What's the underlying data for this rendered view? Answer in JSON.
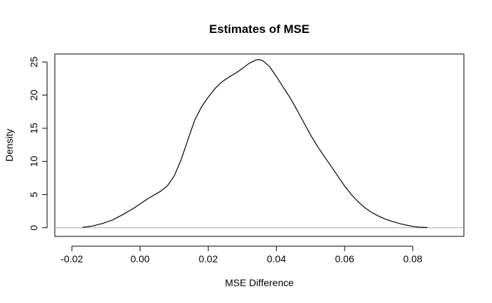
{
  "chart_data": {
    "type": "line",
    "title": "Estimates of MSE",
    "xlabel": "MSE Difference",
    "ylabel": "Density",
    "xlim": [
      -0.025,
      0.095
    ],
    "ylim": [
      -1.3,
      26.2
    ],
    "xticks": [
      -0.02,
      0.0,
      0.02,
      0.04,
      0.06,
      0.08
    ],
    "xtick_labels": [
      "-0.02",
      "0.00",
      "0.02",
      "0.04",
      "0.06",
      "0.08"
    ],
    "yticks": [
      0,
      5,
      10,
      15,
      20,
      25
    ],
    "ytick_labels": [
      "0",
      "5",
      "10",
      "15",
      "20",
      "25"
    ],
    "grid": false,
    "baseline": 0,
    "series": [
      {
        "x": [
          -0.0169,
          -0.014,
          -0.011,
          -0.008,
          -0.005,
          -0.002,
          0.0,
          0.002,
          0.004,
          0.006,
          0.008,
          0.01,
          0.012,
          0.014,
          0.016,
          0.018,
          0.02,
          0.022,
          0.024,
          0.026,
          0.028,
          0.03,
          0.032,
          0.034,
          0.035,
          0.036,
          0.038,
          0.04,
          0.042,
          0.044,
          0.046,
          0.048,
          0.05,
          0.052,
          0.054,
          0.056,
          0.058,
          0.06,
          0.062,
          0.064,
          0.066,
          0.068,
          0.07,
          0.072,
          0.074,
          0.076,
          0.078,
          0.08,
          0.082,
          0.0843
        ],
        "y": [
          0.05,
          0.25,
          0.65,
          1.2,
          2.0,
          2.9,
          3.6,
          4.3,
          4.9,
          5.5,
          6.3,
          7.8,
          10.2,
          13.2,
          16.2,
          18.2,
          19.7,
          21.0,
          22.0,
          22.7,
          23.3,
          24.0,
          24.8,
          25.3,
          25.35,
          25.2,
          24.3,
          22.8,
          21.2,
          19.6,
          17.8,
          15.9,
          14.0,
          12.3,
          10.8,
          9.3,
          7.8,
          6.3,
          5.0,
          3.9,
          3.0,
          2.3,
          1.75,
          1.3,
          0.95,
          0.65,
          0.4,
          0.2,
          0.08,
          0.03
        ]
      }
    ]
  }
}
